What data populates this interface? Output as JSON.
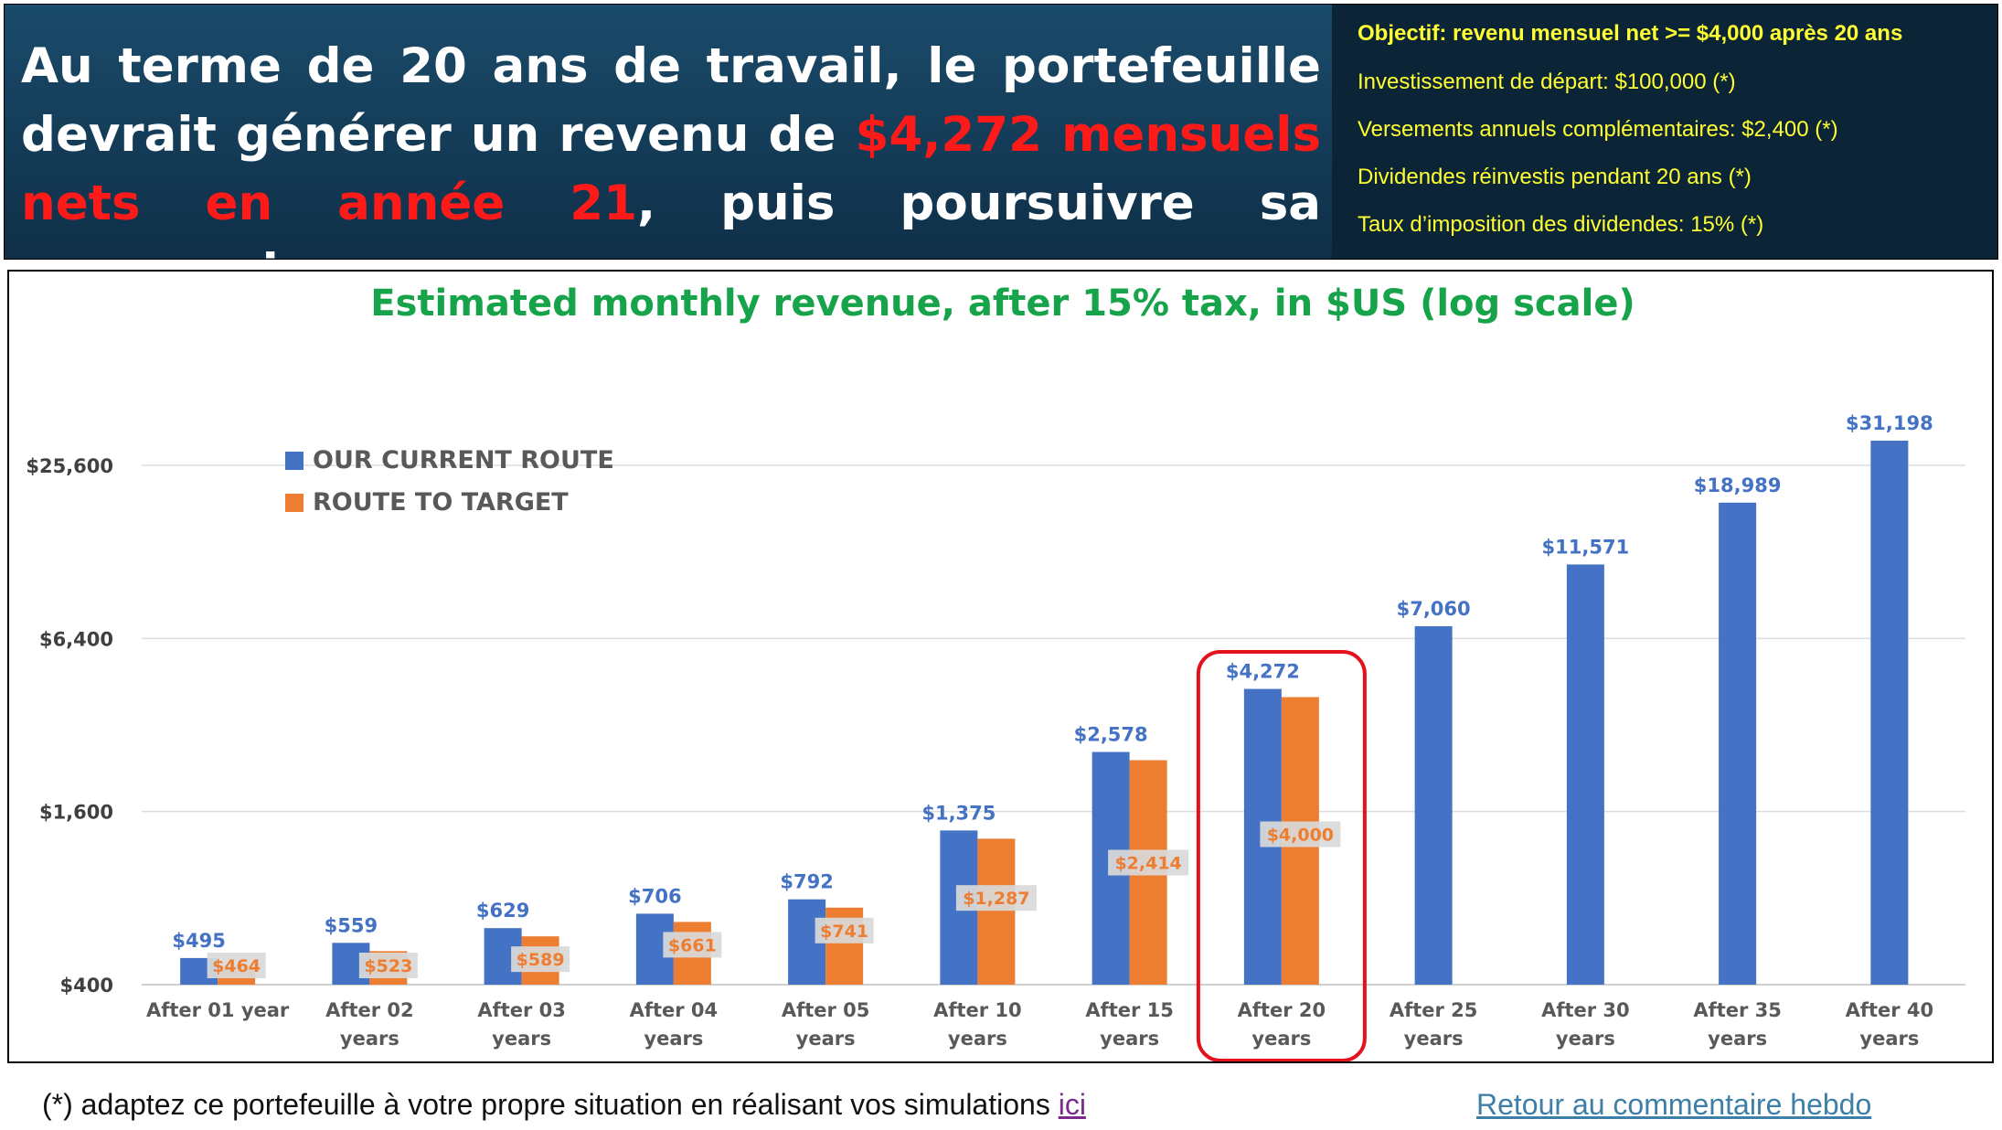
{
  "banner": {
    "headline_part1": "Au terme de 20 ans de travail, le portefeuille devrait générer un revenu de ",
    "headline_highlight": "$4,272 mensuels nets en année 21",
    "headline_part2": ", puis poursuivre sa progression.",
    "info_lines": [
      "Objectif: revenu mensuel net >= $4,000 après 20 ans",
      "Investissement de départ: $100,000 (*)",
      "Versements annuels complémentaires: $2,400 (*)",
      "Dividendes réinvestis pendant 20 ans (*)",
      "Taux d’imposition des dividendes: 15% (*)"
    ],
    "headline_color": "#ffffff",
    "highlight_color": "#ff1a1a",
    "info_color": "#ffff33"
  },
  "chart_data": {
    "type": "bar",
    "title": "Estimated monthly revenue, after 15% tax, in $US (log scale)",
    "y_scale": "log",
    "ylim": [
      400,
      25600
    ],
    "y_ticks": [
      400,
      1600,
      6400,
      25600
    ],
    "y_tick_labels": [
      "$400",
      "$1,600",
      "$6,400",
      "$25,600"
    ],
    "grid": true,
    "legend_position": "top-left",
    "categories": [
      [
        "After 01 year"
      ],
      [
        "After 02",
        "years"
      ],
      [
        "After 03",
        "years"
      ],
      [
        "After 04",
        "years"
      ],
      [
        "After 05",
        "years"
      ],
      [
        "After 10",
        "years"
      ],
      [
        "After 15",
        "years"
      ],
      [
        "After 20",
        "years"
      ],
      [
        "After 25",
        "years"
      ],
      [
        "After 30",
        "years"
      ],
      [
        "After 35",
        "years"
      ],
      [
        "After 40",
        "years"
      ]
    ],
    "series": [
      {
        "name": "OUR CURRENT ROUTE",
        "color": "#4472c4",
        "values": [
          495,
          559,
          629,
          706,
          792,
          1375,
          2578,
          4272,
          7060,
          11571,
          18989,
          31198
        ],
        "labels": [
          "$495",
          "$559",
          "$629",
          "$706",
          "$792",
          "$1,375",
          "$2,578",
          "$4,272",
          "$7,060",
          "$11,571",
          "$18,989",
          "$31,198"
        ]
      },
      {
        "name": "ROUTE TO TARGET",
        "color": "#ed7d31",
        "values": [
          464,
          523,
          589,
          661,
          741,
          1287,
          2414,
          4000,
          null,
          null,
          null,
          null
        ],
        "labels": [
          "$464",
          "$523",
          "$589",
          "$661",
          "$741",
          "$1,287",
          "$2,414",
          "$4,000",
          null,
          null,
          null,
          null
        ]
      }
    ],
    "highlight_category": 7,
    "highlight_color": "#e3121b",
    "title_color": "#16a34a"
  },
  "footer": {
    "note": "(*) adaptez ce portefeuille à votre propre situation en réalisant vos simulations ",
    "note_link": "ici",
    "right_link": "Retour au commentaire hebdo"
  }
}
